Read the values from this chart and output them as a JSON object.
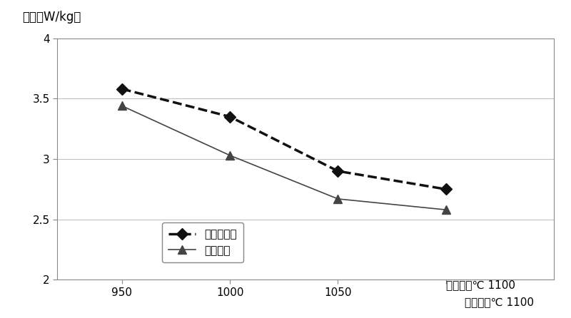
{
  "x": [
    950,
    1000,
    1050,
    1100
  ],
  "series1_values": [
    3.58,
    3.35,
    2.9,
    2.75
  ],
  "series2_values": [
    3.44,
    3.03,
    2.67,
    2.58
  ],
  "series1_label": "未涂无机盐",
  "series2_label": "涂无机盐",
  "ylabel": "鐵损（W/kg）",
  "xlabel_text": "退火温度℃",
  "xlim": [
    920,
    1150
  ],
  "ylim": [
    2.0,
    4.0
  ],
  "yticks": [
    2.0,
    2.5,
    3.0,
    3.5,
    4.0
  ],
  "xticks": [
    950,
    1000,
    1050,
    1100
  ],
  "grid_color": "#bbbbbb",
  "background_color": "#ffffff",
  "fig_background": "#ffffff",
  "line1_color": "#111111",
  "line2_color": "#444444"
}
